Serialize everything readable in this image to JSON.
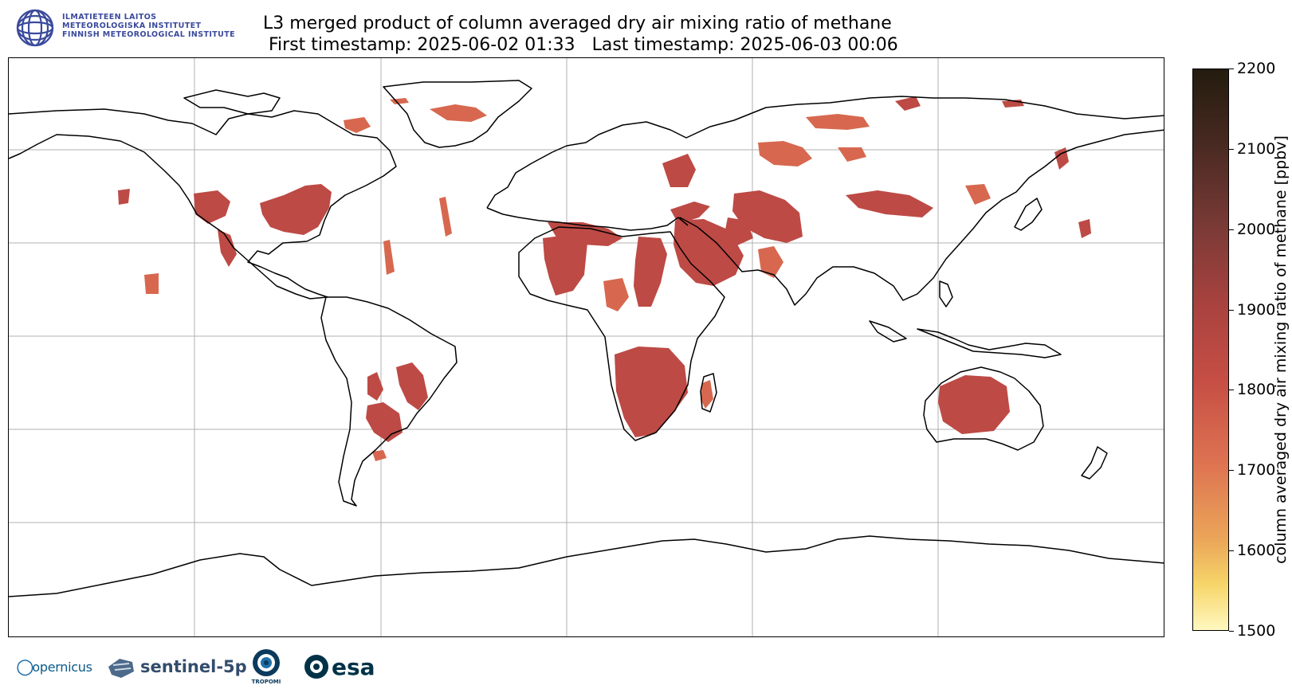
{
  "header": {
    "institute_lines": [
      "ILMATIETEEN LAITOS",
      "METEOROLOGISKA INSTITUTET",
      "FINNISH METEOROLOGICAL INSTITUTE"
    ],
    "title_line1": "L3 merged product of column averaged dry air mixing ratio of methane",
    "title_line2": " First timestamp: 2025-06-02 01:33   Last timestamp: 2025-06-03 00:06"
  },
  "colorbar": {
    "label": "column averaged dry air mixing ratio of methane [ppbv]",
    "ticks": [
      "2200",
      "2100",
      "2000",
      "1900",
      "1800",
      "1700",
      "1600",
      "1500"
    ],
    "min": 1500,
    "max": 2200,
    "colors": [
      "#231c0e",
      "#4a2a22",
      "#7a3a36",
      "#a9423f",
      "#c74f45",
      "#dd7251",
      "#eba659",
      "#f6d66a",
      "#fff8c0"
    ]
  },
  "map": {
    "projection": "plate-carree",
    "gridlines": true,
    "data_color_main": "#bd4a45",
    "data_color_light": "#d7684f"
  },
  "logos": {
    "copernicus": "opernicus",
    "sentinel": "sentinel-5p",
    "tropomi": "TROPOMI",
    "esa": "esa"
  }
}
